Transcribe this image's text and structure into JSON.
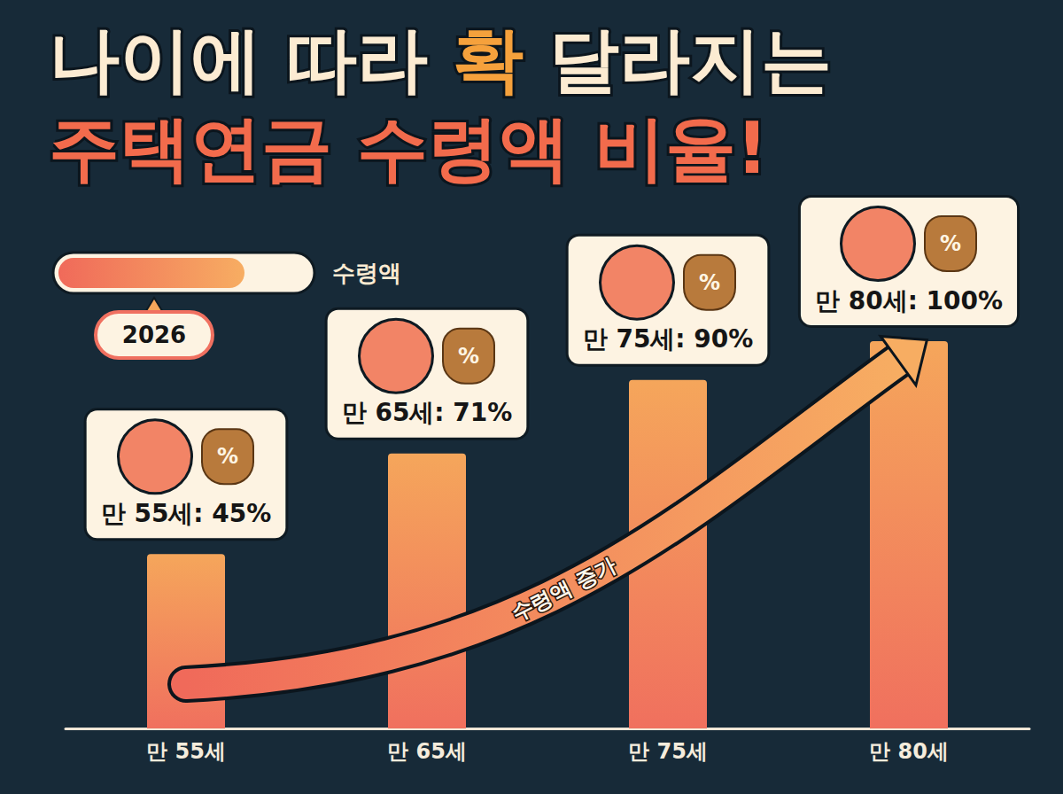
{
  "chart_data": {
    "type": "bar",
    "title": [
      "나이에 따라 확 달라지는",
      "주택연금 수령액 비율!"
    ],
    "categories": [
      "만 55세",
      "만 65세",
      "만 75세",
      "만 80세"
    ],
    "values": [
      45,
      71,
      90,
      100
    ],
    "color": "#f5a65b",
    "ylim": [
      0,
      100
    ],
    "yticks": [
      0,
      100
    ],
    "grid": false,
    "tick_labels": "x",
    "data_labels": false,
    "annotations": {
      "title_highlight": "확",
      "callouts": [
        "만 55세: 45%",
        "만 65세: 71%",
        "만 75세: 90%",
        "만 80세: 100%"
      ],
      "icon_label": "%",
      "arrow_label": "수령액 증가",
      "gauge_label": "수령액",
      "gauge_badge": "2026"
    }
  }
}
